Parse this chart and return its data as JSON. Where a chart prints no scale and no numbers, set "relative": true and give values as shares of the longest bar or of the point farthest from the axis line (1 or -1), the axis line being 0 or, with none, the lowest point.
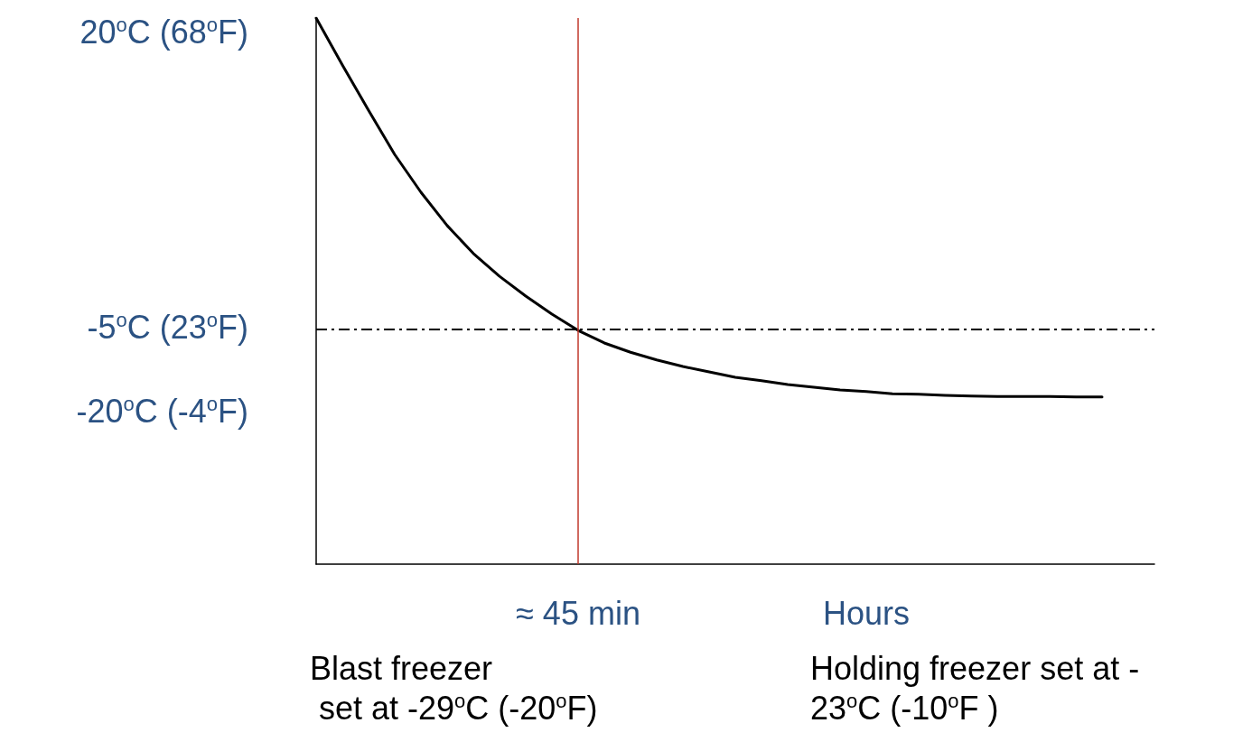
{
  "chart_data": {
    "type": "line",
    "relative": true,
    "categories": [
      null,
      null,
      null,
      null,
      null,
      null,
      null,
      null,
      null,
      null,
      "≈ 45 min",
      null,
      null,
      null,
      null,
      null,
      null,
      null,
      null,
      null,
      null,
      "Hours",
      null,
      null,
      null,
      null,
      null,
      null,
      null,
      null,
      null,
      null,
      null
    ],
    "series": [
      {
        "color": "#000000",
        "values": [
          1.0,
          0.914,
          0.831,
          0.75,
          0.681,
          0.62,
          0.569,
          0.527,
          0.491,
          0.458,
          0.428,
          0.405,
          0.388,
          0.374,
          0.362,
          0.352,
          0.342,
          0.336,
          0.329,
          0.324,
          0.319,
          0.316,
          0.312,
          0.311,
          0.309,
          0.308,
          0.307,
          0.307,
          0.307,
          0.306,
          0.306,
          null,
          null
        ]
      }
    ],
    "ref_lines": [
      {
        "axis": "y",
        "value": 0.426,
        "label": "-5$^{o}$C (23$^{o}$F)",
        "color": "#000000",
        "line_style": "dashed"
      },
      {
        "axis": "x",
        "value": "≈ 45 min",
        "color": "#c0392b",
        "line_style": "solid"
      }
    ],
    "annotations": [
      "20$^{o}$C (68$^{o}$F)",
      "-20$^{o}$C (-4$^{o}$F)",
      "Blast freezer\n set at -29$^{o}$C (-20$^{o}$F)",
      "Holding freezer set at -\n23$^{o}$C (-10$^{o}$F )"
    ],
    "grid": false,
    "marker": "none",
    "line_style": "solid"
  }
}
